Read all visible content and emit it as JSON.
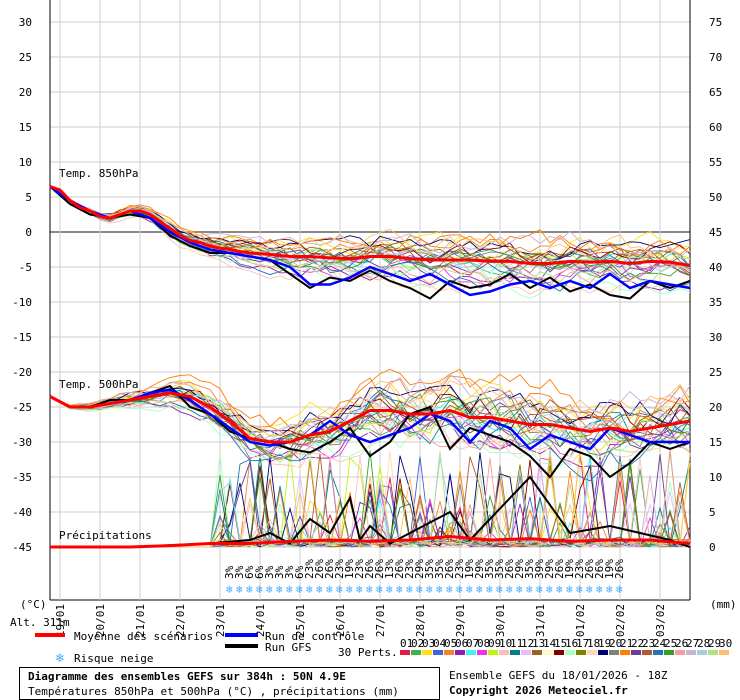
{
  "chart_data": {
    "type": "line",
    "title": "Diagramme des ensembles GEFS sur 384h : 50N 4.9E",
    "subtitle": "Températures 850hPa et 500hPa (°C) , précipitations (mm)",
    "run_info": "Ensemble GEFS du 18/01/2026 - 18Z",
    "copyright": "Copyright 2026 Meteociel.fr",
    "altitude": "Alt. 311m",
    "ylabel_left": "(°C)",
    "ylabel_right": "(mm)",
    "ylim_left": [
      -45,
      30
    ],
    "ylim_right": [
      0,
      75
    ],
    "yticks_left": [
      "30",
      "25",
      "20",
      "15",
      "10",
      "5",
      "0",
      "-5",
      "-10",
      "-15",
      "-20",
      "-25",
      "-30",
      "-35",
      "-40",
      "-45"
    ],
    "yticks_right": [
      "75",
      "70",
      "65",
      "60",
      "55",
      "50",
      "45",
      "40",
      "35",
      "30",
      "25",
      "20",
      "15",
      "10",
      "5",
      "0"
    ],
    "xticks": [
      "19/01",
      "20/01",
      "21/01",
      "22/01",
      "23/01",
      "24/01",
      "25/01",
      "26/01",
      "27/01",
      "28/01",
      "29/01",
      "30/01",
      "31/01",
      "01/02",
      "02/02",
      "03/02"
    ],
    "panel_labels": {
      "t850": "Temp. 850hPa",
      "t500": "Temp. 500hPa",
      "precip": "Précipitations"
    },
    "legend": {
      "mean": "Moyenne des scénarios",
      "control": "Run de contrôle",
      "gfs": "Run GFS",
      "snow": "Risque neige",
      "perts": "30 Perts.",
      "pert_ids": [
        "01",
        "02",
        "03",
        "04",
        "05",
        "06",
        "07",
        "08",
        "09",
        "10",
        "11",
        "12",
        "13",
        "14",
        "15",
        "16",
        "17",
        "18",
        "19",
        "20",
        "21",
        "22",
        "23",
        "24",
        "25",
        "26",
        "27",
        "28",
        "29",
        "30"
      ]
    },
    "colors": {
      "mean": "#ff0000",
      "control": "#0000ff",
      "gfs": "#000000",
      "snow": "#44aaff",
      "perts": [
        "#e6194b",
        "#3cb44b",
        "#ffe119",
        "#4363d8",
        "#f58231",
        "#911eb4",
        "#46f0f0",
        "#f032e6",
        "#bcf60c",
        "#fabebe",
        "#008080",
        "#e6beff",
        "#9a6324",
        "#fffac8",
        "#800000",
        "#aaffc3",
        "#808000",
        "#ffd8b1",
        "#000075",
        "#808080",
        "#ff7f00",
        "#6a3d9a",
        "#b15928",
        "#1f78b4",
        "#33a02c",
        "#fb9a99",
        "#cab2d6",
        "#a6cee3",
        "#b2df8a",
        "#fdbf6f"
      ]
    },
    "snow_risk_pct": [
      "3%",
      "3%",
      "6%",
      "6%",
      "3%",
      "3%",
      "3%",
      "6%",
      "23%",
      "26%",
      "26%",
      "23%",
      "19%",
      "23%",
      "26%",
      "26%",
      "13%",
      "26%",
      "23%",
      "29%",
      "35%",
      "35%",
      "26%",
      "23%",
      "19%",
      "29%",
      "35%",
      "35%",
      "26%",
      "29%",
      "35%",
      "39%",
      "29%",
      "26%",
      "19%",
      "23%",
      "26%",
      "26%",
      "19%",
      "26%"
    ],
    "series": {
      "t850_mean": {
        "x": [
          0,
          6,
          12,
          18,
          24,
          30,
          36,
          42,
          48,
          54,
          60,
          66,
          72,
          78,
          84,
          90,
          96,
          102,
          108,
          114,
          120,
          132,
          144,
          156,
          168,
          180,
          192,
          204,
          216,
          228,
          240,
          252,
          264,
          276,
          288,
          300,
          312,
          324,
          336,
          348,
          360,
          372,
          384
        ],
        "y": [
          6.5,
          6,
          4.5,
          3.5,
          3,
          2.2,
          2,
          2.5,
          3,
          3,
          2.5,
          1.5,
          0.5,
          -0.5,
          -1.2,
          -1.5,
          -2,
          -2.3,
          -2.5,
          -2.8,
          -3,
          -3.2,
          -3.5,
          -3.5,
          -3.7,
          -3.8,
          -3.5,
          -3.5,
          -3.8,
          -4,
          -4,
          -4,
          -4.2,
          -4.2,
          -4.5,
          -4.5,
          -4.2,
          -4.3,
          -4.2,
          -4.5,
          -4.2,
          -4.3,
          -4.8
        ]
      },
      "t850_control": {
        "x": [
          0,
          12,
          24,
          36,
          48,
          60,
          72,
          84,
          96,
          108,
          120,
          132,
          144,
          156,
          168,
          180,
          192,
          204,
          216,
          228,
          240,
          252,
          264,
          276,
          288,
          300,
          312,
          324,
          336,
          348,
          360,
          372,
          384
        ],
        "y": [
          6.5,
          4.5,
          3,
          2,
          3,
          2,
          0,
          -1.5,
          -2.5,
          -3,
          -3.5,
          -4,
          -5,
          -7.5,
          -7.5,
          -6.5,
          -5,
          -6,
          -7,
          -6,
          -7.5,
          -9,
          -8.5,
          -7.5,
          -7,
          -8,
          -7,
          -8,
          -6,
          -8,
          -7,
          -7.5,
          -8
        ]
      },
      "t850_gfs": {
        "x": [
          0,
          12,
          24,
          36,
          48,
          60,
          72,
          84,
          96,
          108,
          120,
          132,
          144,
          156,
          168,
          180,
          192,
          204,
          216,
          228,
          240,
          252,
          264,
          276,
          288,
          300,
          312,
          324,
          336,
          348,
          360,
          372,
          384
        ],
        "y": [
          6.5,
          4,
          2.5,
          2,
          2.5,
          2,
          -0.5,
          -2,
          -3,
          -3,
          -3.5,
          -4,
          -6,
          -8,
          -6.5,
          -7,
          -5.5,
          -7,
          -8,
          -9.5,
          -7,
          -8,
          -7.5,
          -6,
          -8,
          -6.5,
          -8.5,
          -7.5,
          -9,
          -9.5,
          -7,
          -8,
          -7
        ]
      },
      "t500_mean": {
        "x": [
          0,
          12,
          24,
          36,
          48,
          60,
          72,
          84,
          96,
          108,
          120,
          132,
          144,
          156,
          168,
          180,
          192,
          204,
          216,
          228,
          240,
          252,
          264,
          276,
          288,
          300,
          312,
          324,
          336,
          348,
          360,
          372,
          384
        ],
        "y": [
          -23.5,
          -25,
          -25,
          -24.5,
          -24,
          -23.5,
          -23,
          -23.5,
          -25,
          -27,
          -29.5,
          -30,
          -30,
          -29,
          -28.5,
          -27,
          -25.5,
          -25.5,
          -26,
          -26,
          -25.5,
          -26.5,
          -26.5,
          -27,
          -27.5,
          -27.5,
          -28,
          -28.5,
          -28,
          -28.5,
          -28,
          -27.5,
          -27
        ]
      },
      "t500_control": {
        "x": [
          0,
          12,
          24,
          36,
          48,
          60,
          72,
          84,
          96,
          108,
          120,
          132,
          144,
          156,
          168,
          180,
          192,
          204,
          216,
          228,
          240,
          252,
          264,
          276,
          288,
          300,
          312,
          324,
          336,
          348,
          360,
          372,
          384
        ],
        "y": [
          -23.5,
          -25,
          -25,
          -24.5,
          -24,
          -23,
          -22.5,
          -24,
          -26,
          -28,
          -30,
          -30.5,
          -30,
          -29,
          -27,
          -29,
          -30,
          -29,
          -28,
          -26,
          -27,
          -30,
          -27,
          -28,
          -31,
          -29,
          -30,
          -31,
          -28,
          -29,
          -30,
          -30,
          -30
        ]
      },
      "t500_gfs": {
        "x": [
          0,
          12,
          24,
          36,
          48,
          60,
          72,
          84,
          96,
          108,
          120,
          132,
          144,
          156,
          168,
          180,
          192,
          204,
          216,
          228,
          240,
          252,
          264,
          276,
          288,
          300,
          312,
          324,
          336,
          348,
          360,
          372,
          384
        ],
        "y": [
          -23.5,
          -25,
          -25,
          -24,
          -24,
          -23,
          -22,
          -25,
          -26,
          -28.5,
          -29.5,
          -30,
          -31,
          -31.5,
          -30,
          -28,
          -32,
          -30,
          -26,
          -25,
          -31,
          -28,
          -29,
          -30,
          -32,
          -35,
          -31,
          -32,
          -35,
          -33,
          -30,
          -31,
          -30
        ]
      },
      "precip_mean": {
        "x": [
          0,
          24,
          48,
          72,
          96,
          120,
          144,
          168,
          192,
          216,
          240,
          264,
          288,
          312,
          336,
          360,
          384
        ],
        "y": [
          0,
          0,
          0,
          0.2,
          0.5,
          0.5,
          0.8,
          1,
          0.8,
          1,
          1.5,
          1,
          1.2,
          0.8,
          1,
          1,
          0.5
        ]
      },
      "precip_gfs": {
        "x": [
          0,
          48,
          96,
          120,
          132,
          144,
          156,
          168,
          180,
          186,
          192,
          204,
          216,
          240,
          252,
          264,
          288,
          312,
          336,
          372,
          384
        ],
        "y": [
          0,
          0,
          0.5,
          1,
          2,
          0.5,
          4,
          2,
          7,
          1,
          3,
          0.5,
          2,
          5,
          1,
          4,
          10,
          2,
          3,
          1,
          0
        ]
      }
    }
  }
}
